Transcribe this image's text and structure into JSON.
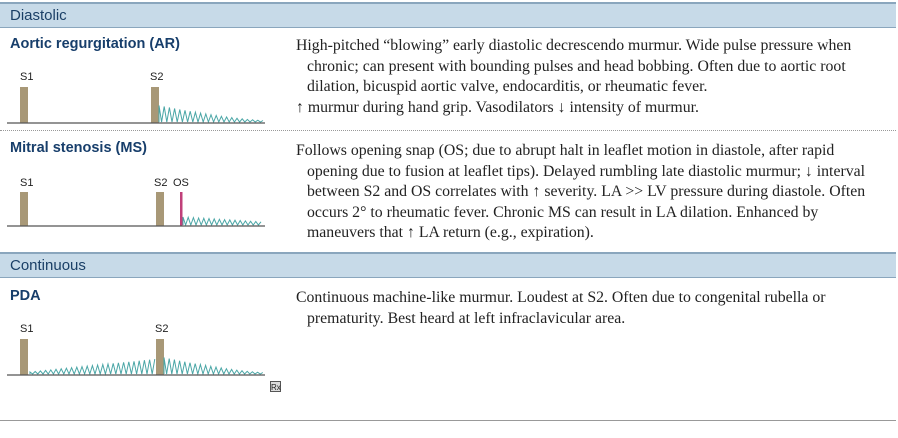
{
  "sections": {
    "diastolic": "Diastolic",
    "continuous": "Continuous"
  },
  "ar": {
    "title": "Aortic regurgitation (AR)",
    "s1": "S1",
    "s2": "S2",
    "lines": [
      "High-pitched “blowing” early diastolic decrescendo murmur. Wide pulse pressure when chronic; can present with bounding pulses and head bobbing. Often due to aortic root dilation, bicuspid aortic valve, endocarditis, or rheumatic fever.",
      "↑ murmur during hand grip. Vasodilators ↓ intensity of murmur."
    ]
  },
  "ms": {
    "title": "Mitral stenosis (MS)",
    "s1": "S1",
    "s2": "S2",
    "os": "OS",
    "text": "Follows opening snap (OS; due to abrupt halt in leaflet motion in diastole, after rapid opening due to fusion at leaflet tips). Delayed rumbling late diastolic murmur; ↓ interval between S2 and OS correlates with ↑ severity. LA >> LV pressure during diastole. Often occurs 2° to rheumatic fever. Chronic MS can result in LA dilation. Enhanced by maneuvers that ↑ LA return (e.g., expiration)."
  },
  "pda": {
    "title": "PDA",
    "s1": "S1",
    "s2": "S2",
    "text": "Continuous machine-like murmur. Loudest at S2. Often due to congenital rubella or prematurity. Best heard at left infraclavicular area."
  },
  "footer_icon": "Rx",
  "colors": {
    "band": "#c7dae8",
    "heading": "#173e6b",
    "sound_bar": "#a89877",
    "murmur": "#4aa6a6",
    "opening_snap": "#c0407a"
  }
}
